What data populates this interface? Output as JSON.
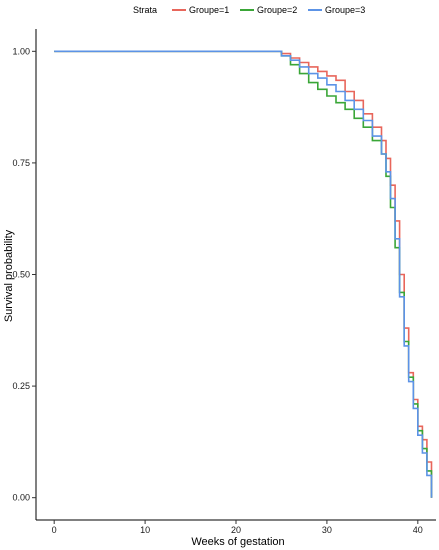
{
  "chart_data": {
    "type": "line",
    "xlabel": "Weeks of gestation",
    "ylabel": "Survival probability",
    "xlim": [
      -2,
      42
    ],
    "ylim": [
      -0.05,
      1.05
    ],
    "x_ticks": [
      0,
      10,
      20,
      30,
      40
    ],
    "y_ticks": [
      0.0,
      0.25,
      0.5,
      0.75,
      1.0
    ],
    "y_tick_labels": [
      "0.00",
      "0.25",
      "0.50",
      "0.75",
      "1.00"
    ],
    "grid": false,
    "legend": {
      "title": "Strata",
      "position": "top"
    },
    "series": [
      {
        "name": "Groupe=1",
        "color": "#e8665b",
        "x": [
          0,
          24,
          25,
          26,
          27,
          28,
          29,
          30,
          31,
          32,
          33,
          34,
          35,
          36,
          36.5,
          37,
          37.5,
          38,
          38.5,
          39,
          39.5,
          40,
          40.5,
          41,
          41.5
        ],
        "y": [
          1.0,
          1.0,
          0.995,
          0.985,
          0.975,
          0.965,
          0.955,
          0.945,
          0.935,
          0.91,
          0.89,
          0.86,
          0.83,
          0.8,
          0.76,
          0.7,
          0.62,
          0.5,
          0.38,
          0.28,
          0.22,
          0.16,
          0.13,
          0.08,
          0.0
        ]
      },
      {
        "name": "Groupe=2",
        "color": "#3aa637",
        "x": [
          0,
          24,
          25,
          26,
          27,
          28,
          29,
          30,
          31,
          32,
          33,
          34,
          35,
          36,
          36.5,
          37,
          37.5,
          38,
          38.5,
          39,
          39.5,
          40,
          40.5,
          41,
          41.5
        ],
        "y": [
          1.0,
          1.0,
          0.99,
          0.97,
          0.95,
          0.93,
          0.915,
          0.9,
          0.885,
          0.87,
          0.85,
          0.83,
          0.8,
          0.77,
          0.72,
          0.65,
          0.56,
          0.46,
          0.35,
          0.27,
          0.21,
          0.15,
          0.11,
          0.06,
          0.0
        ]
      },
      {
        "name": "Groupe=3",
        "color": "#5c93e6",
        "x": [
          0,
          24,
          25,
          26,
          27,
          28,
          29,
          30,
          31,
          32,
          33,
          34,
          35,
          36,
          36.5,
          37,
          37.5,
          38,
          38.5,
          39,
          39.5,
          40,
          40.5,
          41,
          41.5
        ],
        "y": [
          1.0,
          1.0,
          0.99,
          0.98,
          0.965,
          0.95,
          0.94,
          0.925,
          0.91,
          0.89,
          0.87,
          0.845,
          0.81,
          0.77,
          0.73,
          0.67,
          0.58,
          0.45,
          0.34,
          0.26,
          0.2,
          0.14,
          0.1,
          0.05,
          0.0
        ]
      }
    ]
  }
}
